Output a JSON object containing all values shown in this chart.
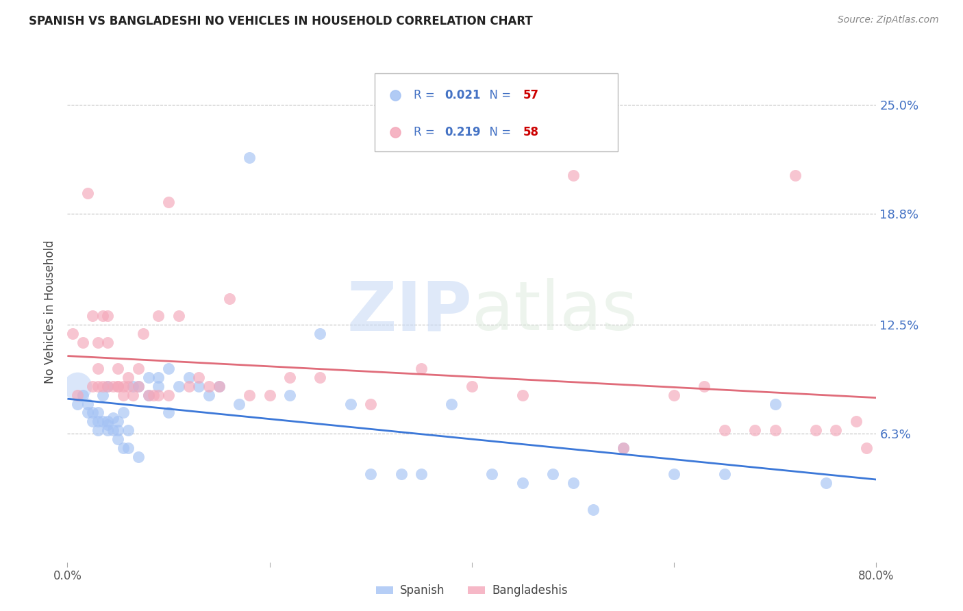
{
  "title": "SPANISH VS BANGLADESHI NO VEHICLES IN HOUSEHOLD CORRELATION CHART",
  "source": "Source: ZipAtlas.com",
  "ylabel": "No Vehicles in Household",
  "ytick_labels": [
    "25.0%",
    "18.8%",
    "12.5%",
    "6.3%"
  ],
  "ytick_values": [
    0.25,
    0.188,
    0.125,
    0.063
  ],
  "xmin": 0.0,
  "xmax": 0.8,
  "ymin": -0.01,
  "ymax": 0.275,
  "spanish_color": "#a4c2f4",
  "bangladeshi_color": "#f4a7b9",
  "trend_spanish_color": "#3c78d8",
  "trend_bangladeshi_color": "#e06c7a",
  "watermark_zip": "ZIP",
  "watermark_atlas": "atlas",
  "legend_r1": "0.021",
  "legend_n1": "57",
  "legend_r2": "0.219",
  "legend_n2": "58",
  "spanish_x": [
    0.01,
    0.015,
    0.02,
    0.02,
    0.025,
    0.025,
    0.03,
    0.03,
    0.03,
    0.035,
    0.035,
    0.04,
    0.04,
    0.04,
    0.04,
    0.045,
    0.045,
    0.05,
    0.05,
    0.05,
    0.055,
    0.055,
    0.06,
    0.06,
    0.065,
    0.07,
    0.07,
    0.08,
    0.08,
    0.09,
    0.09,
    0.1,
    0.1,
    0.11,
    0.12,
    0.13,
    0.14,
    0.15,
    0.17,
    0.18,
    0.22,
    0.25,
    0.28,
    0.3,
    0.33,
    0.35,
    0.38,
    0.42,
    0.45,
    0.48,
    0.5,
    0.52,
    0.55,
    0.6,
    0.65,
    0.7,
    0.75
  ],
  "spanish_y": [
    0.08,
    0.085,
    0.075,
    0.08,
    0.07,
    0.075,
    0.065,
    0.07,
    0.075,
    0.07,
    0.085,
    0.065,
    0.068,
    0.07,
    0.09,
    0.065,
    0.072,
    0.06,
    0.065,
    0.07,
    0.055,
    0.075,
    0.055,
    0.065,
    0.09,
    0.05,
    0.09,
    0.085,
    0.095,
    0.09,
    0.095,
    0.075,
    0.1,
    0.09,
    0.095,
    0.09,
    0.085,
    0.09,
    0.08,
    0.22,
    0.085,
    0.12,
    0.08,
    0.04,
    0.04,
    0.04,
    0.08,
    0.04,
    0.035,
    0.04,
    0.035,
    0.02,
    0.055,
    0.04,
    0.04,
    0.08,
    0.035
  ],
  "bangladeshi_x": [
    0.005,
    0.01,
    0.015,
    0.02,
    0.025,
    0.025,
    0.03,
    0.03,
    0.03,
    0.035,
    0.035,
    0.04,
    0.04,
    0.04,
    0.045,
    0.05,
    0.05,
    0.05,
    0.055,
    0.055,
    0.06,
    0.06,
    0.065,
    0.07,
    0.07,
    0.075,
    0.08,
    0.085,
    0.09,
    0.09,
    0.1,
    0.1,
    0.11,
    0.12,
    0.13,
    0.14,
    0.15,
    0.16,
    0.18,
    0.2,
    0.22,
    0.25,
    0.3,
    0.35,
    0.4,
    0.45,
    0.5,
    0.55,
    0.6,
    0.63,
    0.65,
    0.68,
    0.7,
    0.72,
    0.74,
    0.76,
    0.78,
    0.79
  ],
  "bangladeshi_y": [
    0.12,
    0.085,
    0.115,
    0.2,
    0.09,
    0.13,
    0.09,
    0.1,
    0.115,
    0.09,
    0.13,
    0.09,
    0.115,
    0.13,
    0.09,
    0.09,
    0.09,
    0.1,
    0.085,
    0.09,
    0.09,
    0.095,
    0.085,
    0.09,
    0.1,
    0.12,
    0.085,
    0.085,
    0.085,
    0.13,
    0.085,
    0.195,
    0.13,
    0.09,
    0.095,
    0.09,
    0.09,
    0.14,
    0.085,
    0.085,
    0.095,
    0.095,
    0.08,
    0.1,
    0.09,
    0.085,
    0.21,
    0.055,
    0.085,
    0.09,
    0.065,
    0.065,
    0.065,
    0.21,
    0.065,
    0.065,
    0.07,
    0.055
  ]
}
